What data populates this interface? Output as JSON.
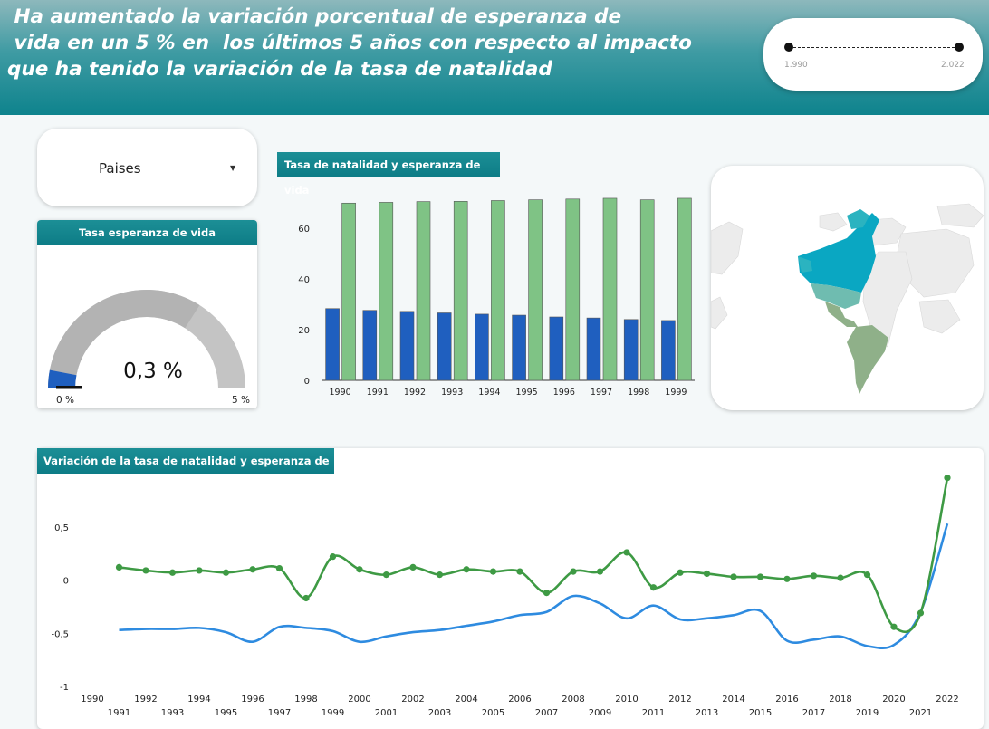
{
  "header": {
    "headline": " Ha aumentado la variación porcentual de esperanza de\n vida en un 5 % en  los últimos 5 años con respecto al impacto\nque ha tenido la variación de la tasa de natalidad"
  },
  "year_range": {
    "min_label": "1.990",
    "max_label": "2.022"
  },
  "country_filter": {
    "label": "Paises",
    "arrow_icon": "caret-down-icon"
  },
  "gauge": {
    "title": "Tasa esperanza de vida",
    "value_label": "0,3 %",
    "value": 0.3,
    "min_label": "0 %",
    "max_label": "5 %",
    "min": 0,
    "max": 5,
    "colors": {
      "track": "#c4c4c4",
      "fill": "#b3b3b3",
      "needle": "#1f5fbf",
      "baseline": "#111111"
    }
  },
  "map": {
    "title": "",
    "highlight_colors": [
      "#0aa7c2",
      "#2bb3c0",
      "#6fbcb0",
      "#8fb089"
    ]
  },
  "chart_data": [
    {
      "type": "bar",
      "title": "Tasa de natalidad y esperanza de vida",
      "categories": [
        "1990",
        "1991",
        "1992",
        "1993",
        "1994",
        "1995",
        "1996",
        "1997",
        "1998",
        "1999"
      ],
      "series": [
        {
          "name": "",
          "color": "#1f5fbf",
          "values": [
            28.3,
            27.6,
            27.2,
            26.6,
            26.1,
            25.7,
            25.0,
            24.6,
            24.0,
            23.6
          ]
        },
        {
          "name": "",
          "color": "#7fc385",
          "values": [
            69.9,
            70.2,
            70.5,
            70.6,
            70.9,
            71.2,
            71.5,
            71.8,
            71.2,
            71.8
          ]
        }
      ],
      "yticks": [
        "0",
        "20",
        "40",
        "60"
      ],
      "ylim": [
        0,
        75
      ]
    },
    {
      "type": "line",
      "title": "Variación de la tasa de natalidad y esperanza de vida",
      "x": [
        "1990",
        "1991",
        "1992",
        "1993",
        "1994",
        "1995",
        "1996",
        "1997",
        "1998",
        "1999",
        "2000",
        "2001",
        "2002",
        "2003",
        "2004",
        "2005",
        "2006",
        "2007",
        "2008",
        "2009",
        "2010",
        "2011",
        "2012",
        "2013",
        "2014",
        "2015",
        "2016",
        "2017",
        "2018",
        "2019",
        "2020",
        "2021",
        "2022"
      ],
      "series": [
        {
          "name": "",
          "color": "#3e9a44",
          "markers": true,
          "values": [
            null,
            0.12,
            0.09,
            0.07,
            0.09,
            0.07,
            0.1,
            0.11,
            -0.17,
            0.22,
            0.1,
            0.05,
            0.12,
            0.05,
            0.1,
            0.08,
            0.08,
            -0.12,
            0.08,
            0.08,
            0.26,
            -0.07,
            0.07,
            0.06,
            0.03,
            0.03,
            0.01,
            0.04,
            0.02,
            0.05,
            -0.44,
            -0.31,
            0.96
          ]
        },
        {
          "name": "",
          "color": "#2e8be0",
          "markers": false,
          "values": [
            null,
            -0.47,
            -0.46,
            -0.46,
            -0.45,
            -0.49,
            -0.58,
            -0.44,
            -0.45,
            -0.48,
            -0.58,
            -0.53,
            -0.49,
            -0.47,
            -0.43,
            -0.39,
            -0.33,
            -0.3,
            -0.15,
            -0.22,
            -0.36,
            -0.24,
            -0.37,
            -0.36,
            -0.33,
            -0.29,
            -0.57,
            -0.56,
            -0.53,
            -0.62,
            -0.61,
            -0.3,
            0.53
          ]
        }
      ],
      "yticks": [
        "0,5",
        "0",
        "-0,5",
        "-1"
      ],
      "ylim": [
        -1,
        1
      ]
    }
  ]
}
